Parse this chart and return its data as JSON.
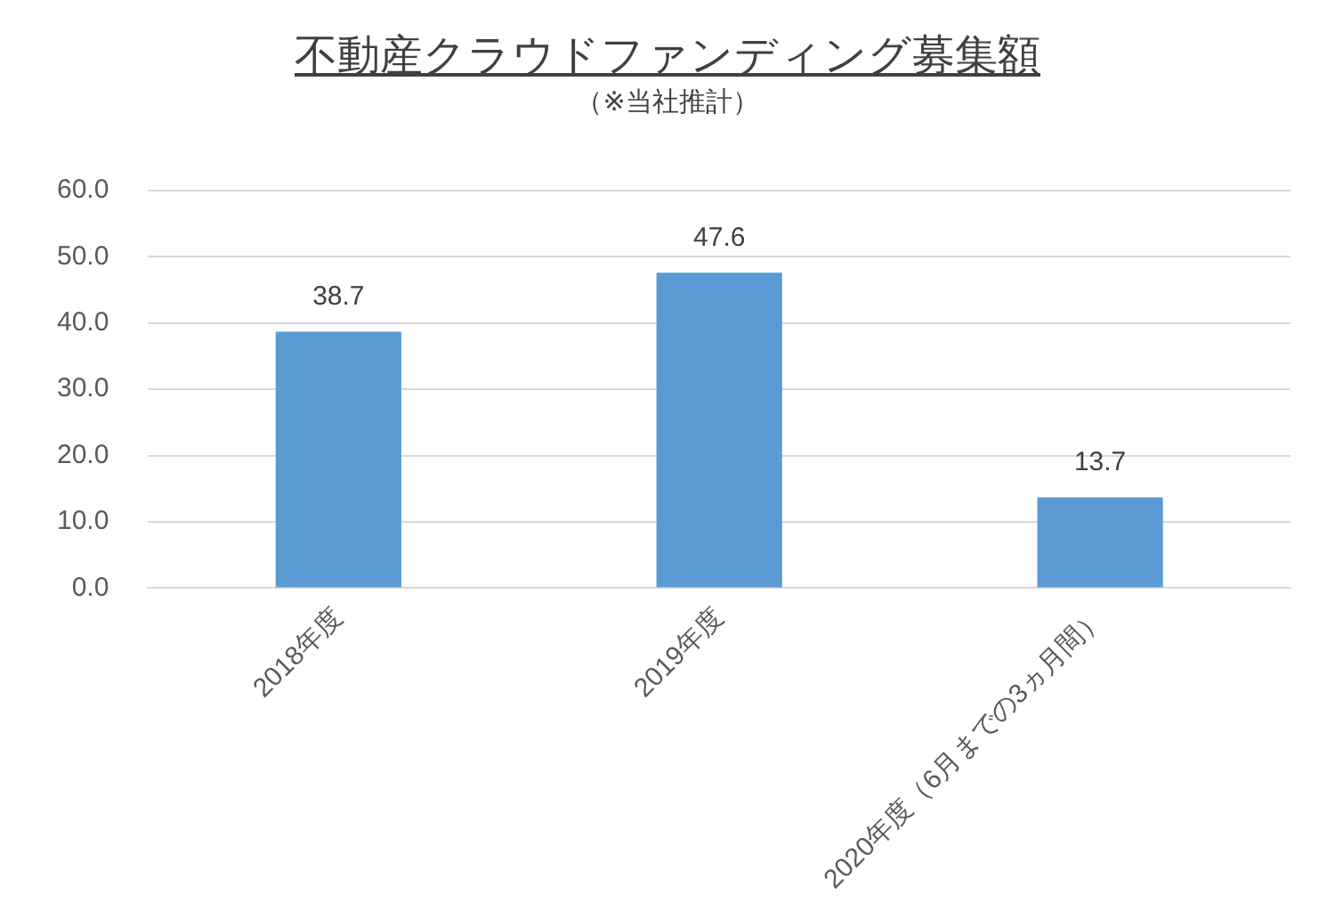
{
  "chart_data": {
    "type": "bar",
    "title": "不動産クラウドファンディング募集額",
    "subtitle": "（※当社推計）",
    "categories": [
      "2018年度",
      "2019年度",
      "2020年度（6月までの3ヵ月間）"
    ],
    "values": [
      38.7,
      47.6,
      13.7
    ],
    "color": "#5b9bd5",
    "ylim": [
      0,
      60
    ],
    "yticks": [
      {
        "value": 0,
        "label": "0.0"
      },
      {
        "value": 10,
        "label": "10.0"
      },
      {
        "value": 20,
        "label": "20.0"
      },
      {
        "value": 30,
        "label": "30.0"
      },
      {
        "value": 40,
        "label": "40.0"
      },
      {
        "value": 50,
        "label": "50.0"
      },
      {
        "value": 60,
        "label": "60.0"
      }
    ],
    "grid": "y",
    "data_labels": true,
    "legend": false
  }
}
